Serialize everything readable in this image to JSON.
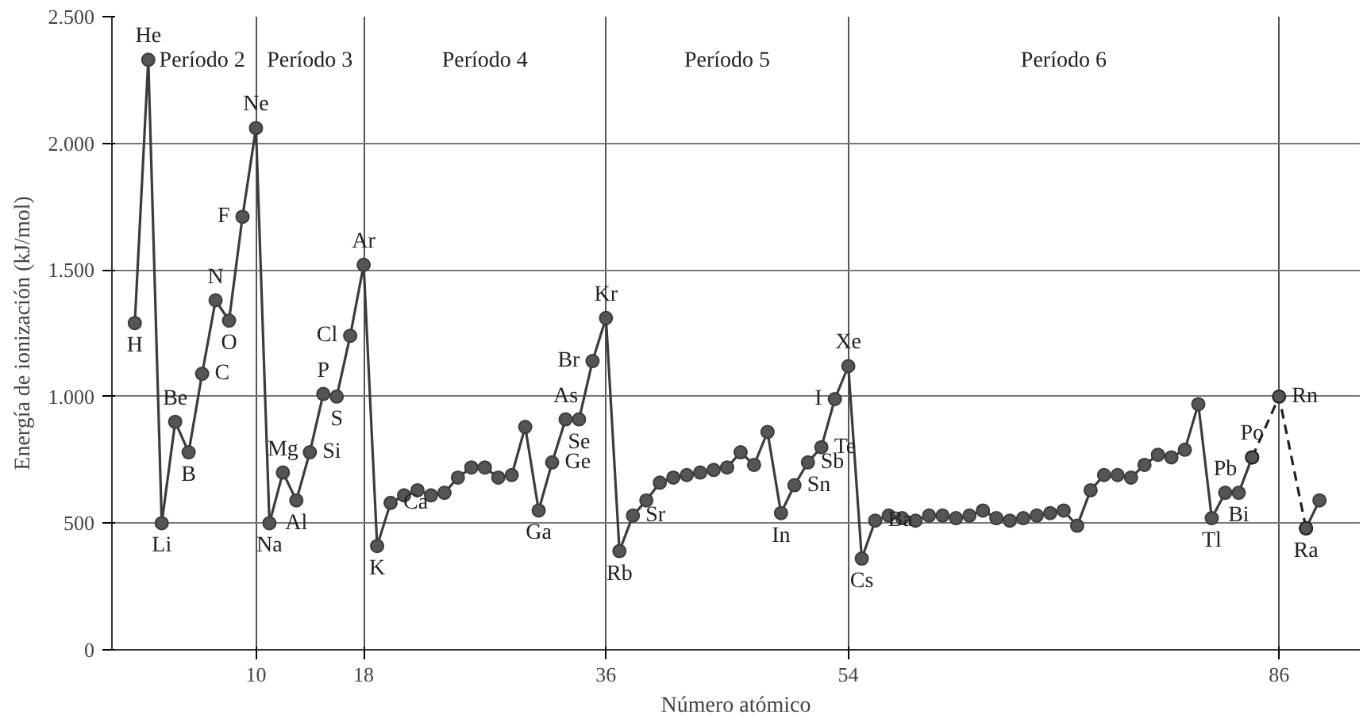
{
  "chart_data": {
    "type": "line",
    "xlabel": "Número atómico",
    "ylabel": "Energía de ionización (kJ/mol)",
    "xlim": [
      -0.7,
      92
    ],
    "ylim": [
      0,
      2500
    ],
    "xticks": [
      10,
      18,
      36,
      54,
      86
    ],
    "yticks": [
      {
        "value": 0,
        "label": "0"
      },
      {
        "value": 500,
        "label": "500"
      },
      {
        "value": 1000,
        "label": "1.000"
      },
      {
        "value": 1500,
        "label": "1.500"
      },
      {
        "value": 2000,
        "label": "2.000"
      },
      {
        "value": 2500,
        "label": "2.500"
      }
    ],
    "grid": true,
    "marker": "circle",
    "series": [
      {
        "color": "#3c3c3c",
        "line_style": "solid",
        "x": [
          1,
          2,
          3,
          4,
          5,
          6,
          7,
          8,
          9,
          10,
          11,
          12,
          13,
          14,
          15,
          16,
          17,
          18,
          19,
          20,
          21,
          22,
          23,
          24,
          25,
          26,
          27,
          28,
          29,
          30,
          31,
          32,
          33,
          34,
          35,
          36,
          37,
          38,
          39,
          40,
          41,
          42,
          43,
          44,
          45,
          46,
          47,
          48,
          49,
          50,
          51,
          52,
          53,
          54,
          55,
          56,
          57,
          58,
          59,
          60,
          61,
          62,
          63,
          64,
          65,
          66,
          67,
          68,
          69,
          70,
          71,
          72,
          73,
          74,
          75,
          76,
          77,
          78,
          79,
          80,
          81,
          82,
          83,
          84,
          85,
          86,
          87,
          88,
          89
        ],
        "values": [
          1290,
          2330,
          500,
          900,
          780,
          1090,
          1380,
          1300,
          1710,
          2060,
          500,
          700,
          590,
          780,
          1010,
          1000,
          1240,
          1520,
          410,
          580,
          610,
          630,
          610,
          620,
          680,
          720,
          720,
          680,
          690,
          880,
          550,
          740,
          910,
          910,
          1140,
          1310,
          390,
          530,
          590,
          660,
          680,
          690,
          700,
          710,
          720,
          780,
          730,
          860,
          540,
          650,
          740,
          800,
          990,
          1120,
          360,
          510,
          530,
          520,
          510,
          530,
          530,
          520,
          530,
          550,
          520,
          510,
          520,
          530,
          540,
          550,
          490,
          630,
          690,
          690,
          680,
          730,
          770,
          760,
          790,
          970,
          520,
          620,
          620,
          760,
          null,
          null,
          null,
          480,
          590
        ]
      },
      {
        "color": "#222222",
        "line_style": "dashed",
        "x": [
          84,
          86,
          88
        ],
        "values": [
          760,
          1000,
          480
        ]
      }
    ],
    "annotations": [
      {
        "text": "H",
        "x": 1,
        "y": 1290
      },
      {
        "text": "He",
        "x": 2,
        "y": 2330
      },
      {
        "text": "Li",
        "x": 3,
        "y": 500
      },
      {
        "text": "Be",
        "x": 4,
        "y": 900
      },
      {
        "text": "B",
        "x": 5,
        "y": 780
      },
      {
        "text": "C",
        "x": 6,
        "y": 1090
      },
      {
        "text": "N",
        "x": 7,
        "y": 1380
      },
      {
        "text": "O",
        "x": 8,
        "y": 1300
      },
      {
        "text": "F",
        "x": 9,
        "y": 1710
      },
      {
        "text": "Ne",
        "x": 10,
        "y": 2060
      },
      {
        "text": "Na",
        "x": 11,
        "y": 500
      },
      {
        "text": "Mg",
        "x": 12,
        "y": 700
      },
      {
        "text": "Al",
        "x": 13,
        "y": 590
      },
      {
        "text": "Si",
        "x": 14,
        "y": 780
      },
      {
        "text": "P",
        "x": 15,
        "y": 1010
      },
      {
        "text": "S",
        "x": 16,
        "y": 1000
      },
      {
        "text": "Cl",
        "x": 17,
        "y": 1240
      },
      {
        "text": "Ar",
        "x": 18,
        "y": 1520
      },
      {
        "text": "K",
        "x": 19,
        "y": 410
      },
      {
        "text": "Ca",
        "x": 20,
        "y": 580
      },
      {
        "text": "Ga",
        "x": 31,
        "y": 550
      },
      {
        "text": "Ge",
        "x": 32,
        "y": 740
      },
      {
        "text": "As",
        "x": 33,
        "y": 910
      },
      {
        "text": "Se",
        "x": 34,
        "y": 910
      },
      {
        "text": "Br",
        "x": 35,
        "y": 1140
      },
      {
        "text": "Kr",
        "x": 36,
        "y": 1310
      },
      {
        "text": "Rb",
        "x": 37,
        "y": 390
      },
      {
        "text": "Sr",
        "x": 38,
        "y": 530
      },
      {
        "text": "In",
        "x": 49,
        "y": 540
      },
      {
        "text": "Sn",
        "x": 50,
        "y": 650
      },
      {
        "text": "Sb",
        "x": 51,
        "y": 740
      },
      {
        "text": "Te",
        "x": 52,
        "y": 800
      },
      {
        "text": "I",
        "x": 53,
        "y": 990
      },
      {
        "text": "Xe",
        "x": 54,
        "y": 1120
      },
      {
        "text": "Cs",
        "x": 55,
        "y": 360
      },
      {
        "text": "Ba",
        "x": 56,
        "y": 510
      },
      {
        "text": "Tl",
        "x": 81,
        "y": 520
      },
      {
        "text": "Pb",
        "x": 82,
        "y": 620
      },
      {
        "text": "Bi",
        "x": 83,
        "y": 620
      },
      {
        "text": "Po",
        "x": 84,
        "y": 760
      },
      {
        "text": "Rn",
        "x": 86,
        "y": 1000
      },
      {
        "text": "Ra",
        "x": 88,
        "y": 480
      },
      "Período 2",
      "Período 3",
      "Período 4",
      "Período 5",
      "Período 6"
    ]
  }
}
